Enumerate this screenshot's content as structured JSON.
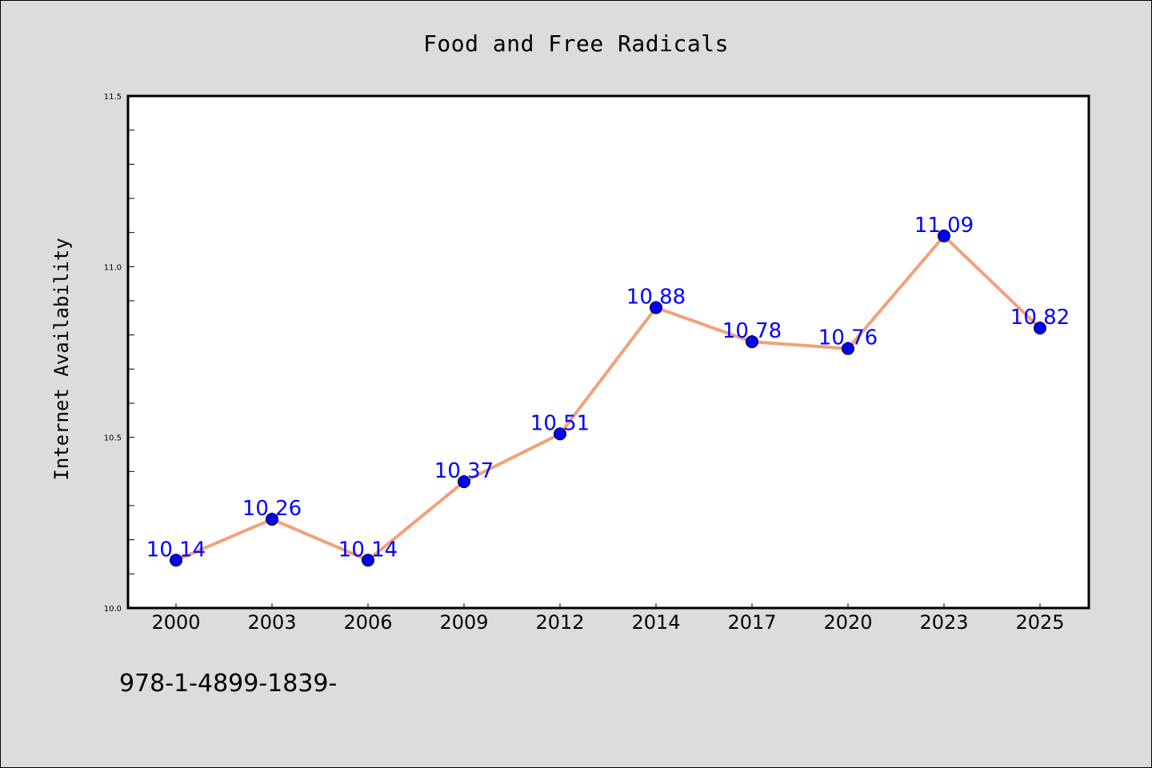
{
  "chart_data": {
    "type": "line",
    "title": "Food and Free Radicals",
    "xlabel": "",
    "ylabel": "Internet Availability",
    "categories": [
      "2000",
      "2003",
      "2006",
      "2009",
      "2012",
      "2014",
      "2017",
      "2020",
      "2023",
      "2025"
    ],
    "series": [
      {
        "values": [
          10.14,
          10.26,
          10.14,
          10.37,
          10.51,
          10.88,
          10.78,
          10.76,
          11.09,
          10.82
        ],
        "labels": [
          "10.14",
          "10.26",
          "10.14",
          "10.37",
          "10.51",
          "10.88",
          "10.78",
          "10.76",
          "11.09",
          "10.82"
        ],
        "line_color": "#f4a07a",
        "marker_color": "#0000ff",
        "label_color": "#0000ff"
      }
    ],
    "ylim": [
      10.0,
      11.5
    ],
    "yticks": [
      "10.0",
      "10.5",
      "11.0",
      "11.5"
    ],
    "grid": false,
    "legend": "none"
  },
  "footer": {
    "text": "978-1-4899-1839-"
  },
  "colors": {
    "figure_background": "#dcdcdc",
    "plot_background": "#ffffff",
    "axis": "#000000"
  }
}
